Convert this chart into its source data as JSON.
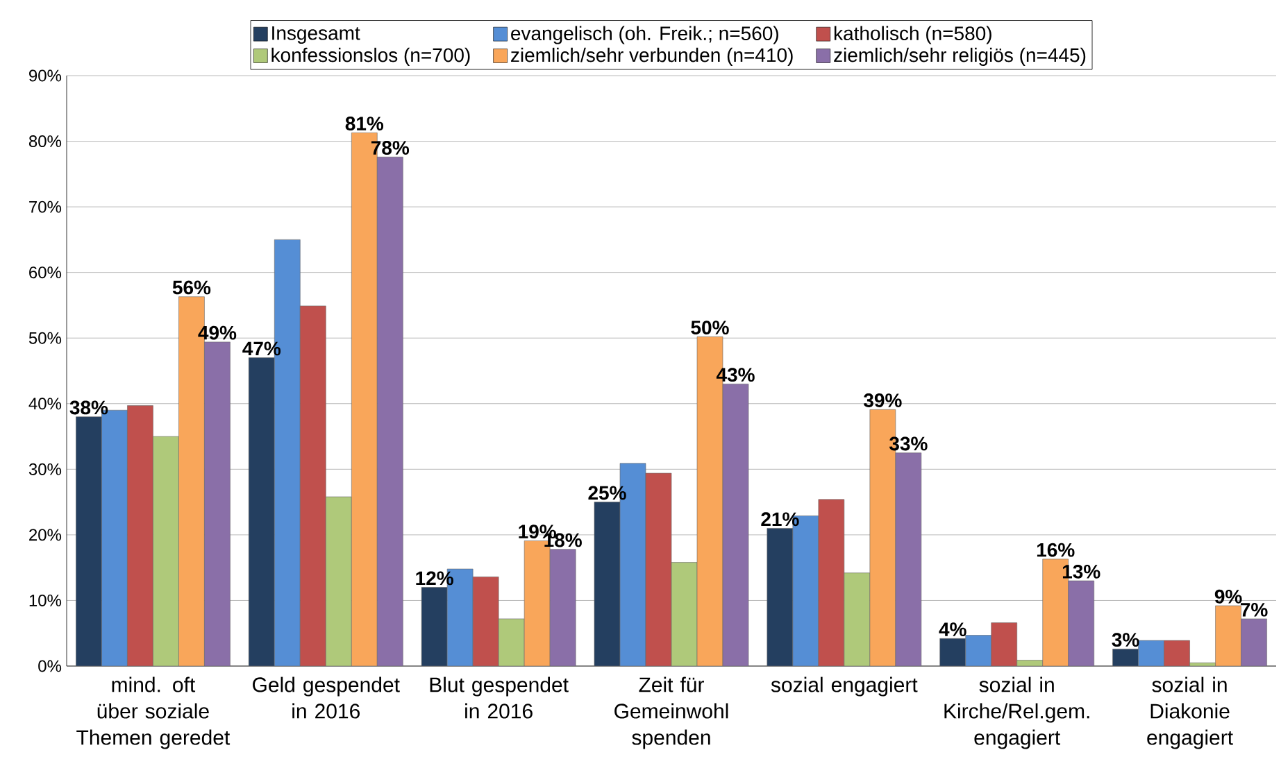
{
  "chart_data": {
    "type": "bar",
    "categories": [
      "mind. oft über soziale Themen geredet",
      "Geld gespendet in 2016",
      "Blut gespendet in 2016",
      "Zeit für Gemeinwohl spenden",
      "sozial engagiert",
      "sozial in Kirche/Rel.gem. engagiert",
      "sozial in Diakonie engagiert"
    ],
    "series": [
      {
        "name": "Insgesamt",
        "color": "#243f60",
        "values": [
          38,
          47,
          12,
          25,
          21,
          4.2,
          2.6
        ],
        "value_labels": [
          "38%",
          "47%",
          "12%",
          "25%",
          "21%",
          "4%",
          "3%"
        ]
      },
      {
        "name": "evangelisch (oh. Freik.; n=560)",
        "color": "#558ed5",
        "values": [
          39.0,
          65.0,
          14.8,
          30.9,
          22.9,
          4.7,
          3.9
        ]
      },
      {
        "name": "katholisch (n=580)",
        "color": "#c0504d",
        "values": [
          39.7,
          54.9,
          13.6,
          29.4,
          25.4,
          6.6,
          3.9
        ]
      },
      {
        "name": "konfessionslos (n=700)",
        "color": "#afc97a",
        "values": [
          35.0,
          25.8,
          7.2,
          15.8,
          14.2,
          0.9,
          0.5
        ]
      },
      {
        "name": "ziemlich/sehr verbunden (n=410)",
        "color": "#f9a65a",
        "values": [
          56.3,
          81.3,
          19.1,
          50.2,
          39.1,
          16.3,
          9.2
        ],
        "value_labels": [
          "56%",
          "81%",
          "19%",
          "50%",
          "39%",
          "16%",
          "9%"
        ]
      },
      {
        "name": "ziemlich/sehr religiös (n=445)",
        "color": "#8a6fa8",
        "values": [
          49.4,
          77.6,
          17.8,
          43.0,
          32.5,
          13.0,
          7.2
        ],
        "value_labels": [
          "49%",
          "78%",
          "18%",
          "43%",
          "33%",
          "13%",
          "7%"
        ]
      }
    ],
    "ylim": [
      0,
      90
    ],
    "yticks": [
      {
        "value": 0,
        "label": "0%"
      },
      {
        "value": 10,
        "label": "10%"
      },
      {
        "value": 20,
        "label": "20%"
      },
      {
        "value": 30,
        "label": "30%"
      },
      {
        "value": 40,
        "label": "40%"
      },
      {
        "value": 50,
        "label": "50%"
      },
      {
        "value": 60,
        "label": "60%"
      },
      {
        "value": 70,
        "label": "70%"
      },
      {
        "value": 80,
        "label": "80%"
      },
      {
        "value": 90,
        "label": "90%"
      }
    ],
    "grid": "y",
    "legend": "top"
  }
}
